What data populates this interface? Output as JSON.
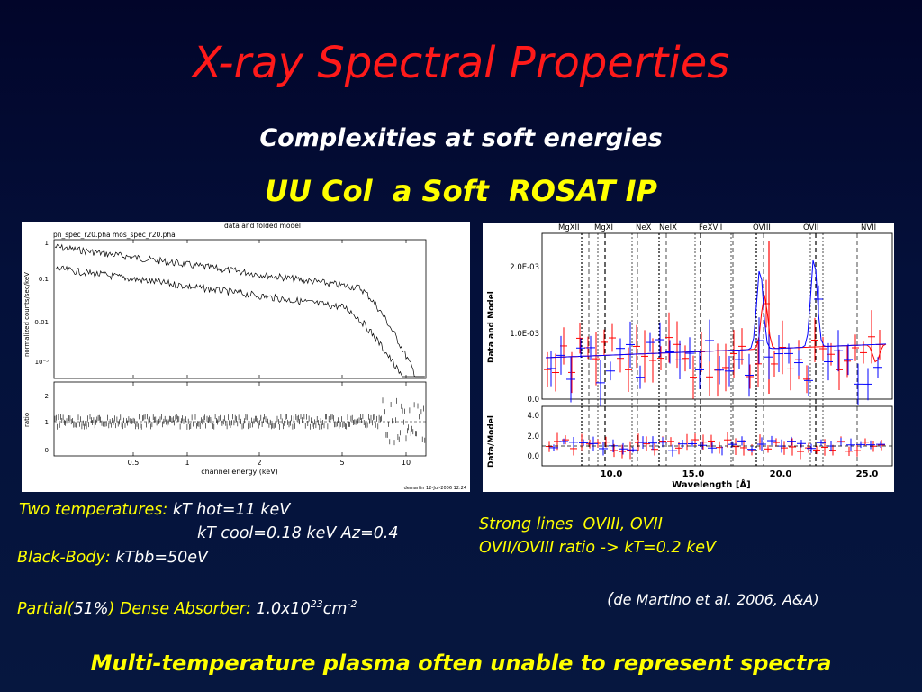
{
  "slide": {
    "title": "X-ray Spectral Properties",
    "subtitle": "Complexities at soft energies",
    "headline": "UU Col  a Soft  ROSAT IP",
    "footer": "Multi-temperature plasma often unable to represent spectra"
  },
  "left_notes": {
    "two_temp_label": "Two temperatures:",
    "kt_hot": " kT hot=11 keV",
    "kt_cool": "kT cool=0.18 keV Az=0.4",
    "bb_label": "Black-Body:",
    "bb_value": " kTbb=50eV",
    "partial_label_a": "Partial(",
    "partial_pct": "51%",
    "partial_label_b": ") Dense Absorber:",
    "absorber_value": " 1.0x10",
    "absorber_exp": "23",
    "absorber_unit": "cm",
    "absorber_unit_exp": "-2"
  },
  "right_notes": {
    "line1": "Strong lines  OVIII, OVII",
    "line2": "OVII/OVIII ratio -> kT=0.2 keV",
    "ref_paren": "(",
    "ref": "de Martino et al. 2006, A&A)"
  },
  "left_plot": {
    "top_title": "data and folded model",
    "file_label": "pn_spec_r20.pha  mos_spec_r20.pha",
    "ylabel_top": "normalized counts/sec/keV",
    "ylabel_bottom": "ratio",
    "xlabel": "channel energy (keV)",
    "y_ticks_top": [
      "1",
      "0.1",
      "0.01",
      "10⁻³"
    ],
    "y_ticks_bottom": [
      "2",
      "1",
      "0"
    ],
    "x_ticks": [
      "0.5",
      "1",
      "2",
      "5",
      "10"
    ],
    "footer_stamp": "demartin 12-Jul-2006 12:24"
  },
  "right_plot": {
    "line_labels": [
      "MgXII",
      "MgXI",
      "NeX",
      "NeIX",
      "FeXVII",
      "OVIII",
      "OVII",
      "NVII"
    ],
    "ylabel_top": "Data and Model",
    "ylabel_bottom": "Data/Model",
    "y_ticks_top": [
      "2.0E-03",
      "1.0E-03",
      "0.0"
    ],
    "y_ticks_bottom": [
      "4.0",
      "2.0",
      "0.0"
    ],
    "x_ticks": [
      "10.0",
      "15.0",
      "20.0",
      "25.0"
    ],
    "xlabel": "Wavelength [Å]",
    "colors": {
      "red": "#ff0000",
      "blue": "#0000ff"
    }
  },
  "colors": {
    "title": "#ff1a1a",
    "highlight": "#ffff00",
    "text": "#ffffff",
    "background": "#03082e"
  }
}
